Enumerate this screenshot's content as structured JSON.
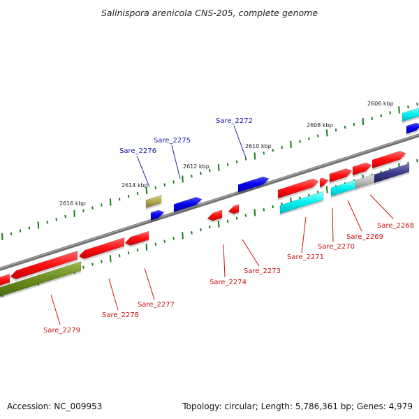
{
  "title": "Salinispora arenicola CNS-205, complete genome",
  "footer": {
    "accession": "Accession: NC_009953",
    "summary": "Topology: circular; Length: 5,786,361 bp; Genes: 4,979"
  },
  "scale_labels": [
    "2606 kbp",
    "2608 kbp",
    "2610 kbp",
    "2612 kbp",
    "2614 kbp",
    "2616 kbp"
  ],
  "genes_top": [
    "Sare_2272",
    "Sare_2275",
    "Sare_2276"
  ],
  "genes_bottom": [
    "Sare_2268",
    "Sare_2269",
    "Sare_2270",
    "Sare_2271",
    "Sare_2273",
    "Sare_2274",
    "Sare_2277",
    "Sare_2278",
    "Sare_2279"
  ],
  "colors": {
    "red": "#ff1a1a",
    "blue": "#0000ee",
    "cyan": "#00f0f0",
    "olive": "#6a8a1e",
    "khaki": "#b0a850",
    "navy": "#3a3a8a",
    "grey": "#bdbdbd",
    "backbone": "#808080",
    "tick": "#1a7a1a"
  }
}
